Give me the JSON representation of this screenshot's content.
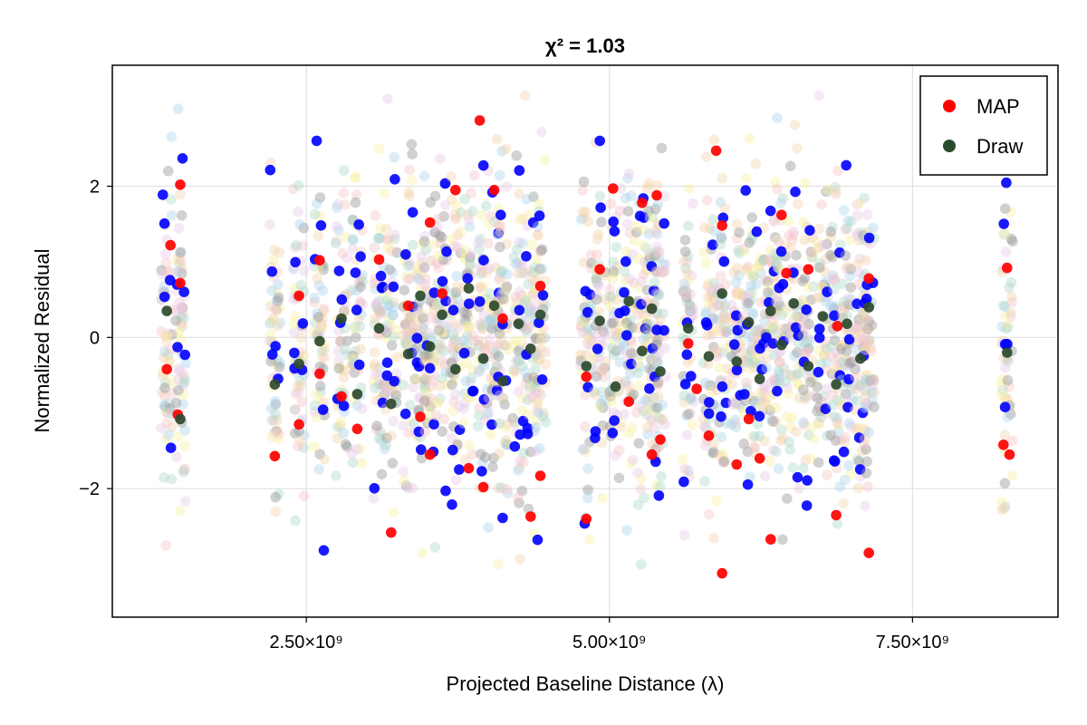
{
  "chart_data": {
    "type": "scatter",
    "title": "χ² = 1.03",
    "xlabel": "Projected Baseline Distance (λ)",
    "ylabel": "Normalized Residual",
    "xlim": [
      900000000,
      8700000000
    ],
    "ylim": [
      -3.7,
      3.6
    ],
    "xticks": [
      2500000000,
      5000000000,
      7500000000
    ],
    "xtick_labels": [
      "2.50×10⁹",
      "5.00×10⁹",
      "7.50×10⁹"
    ],
    "yticks": [
      -2,
      0,
      2
    ],
    "ytick_labels": [
      "−2",
      "0",
      "2"
    ],
    "grid": true,
    "legend": {
      "position": "top-right",
      "entries": [
        {
          "label": "MAP",
          "color": "#ff0000"
        },
        {
          "label": "Draw",
          "color": "#2d4a2d"
        }
      ]
    },
    "baseline_columns": [
      1350000000,
      1460000000,
      2240000000,
      2440000000,
      2610000000,
      2790000000,
      2920000000,
      3100000000,
      3200000000,
      3340000000,
      3440000000,
      3520000000,
      3620000000,
      3730000000,
      3840000000,
      3960000000,
      4050000000,
      4120000000,
      4250000000,
      4350000000,
      4430000000,
      4810000000,
      4920000000,
      5050000000,
      5160000000,
      5270000000,
      5350000000,
      5420000000,
      5650000000,
      5820000000,
      5930000000,
      6050000000,
      6150000000,
      6240000000,
      6330000000,
      6420000000,
      6520000000,
      6640000000,
      6760000000,
      6870000000,
      6960000000,
      7070000000,
      7140000000,
      8280000000
    ],
    "series": [
      {
        "name": "MAP",
        "color": "#ff0000",
        "points": [
          [
            1350000000,
            -0.42
          ],
          [
            1380000000,
            1.22
          ],
          [
            1460000000,
            2.02
          ],
          [
            1460000000,
            0.72
          ],
          [
            1440000000,
            -1.02
          ],
          [
            2240000000,
            -1.57
          ],
          [
            2440000000,
            0.55
          ],
          [
            2440000000,
            -1.15
          ],
          [
            2610000000,
            1.02
          ],
          [
            2610000000,
            -0.48
          ],
          [
            2790000000,
            -0.78
          ],
          [
            2920000000,
            -1.21
          ],
          [
            3100000000,
            1.03
          ],
          [
            3200000000,
            -2.58
          ],
          [
            3340000000,
            0.42
          ],
          [
            3440000000,
            -1.05
          ],
          [
            3520000000,
            1.52
          ],
          [
            3520000000,
            -1.55
          ],
          [
            3620000000,
            0.58
          ],
          [
            3730000000,
            1.95
          ],
          [
            3840000000,
            -1.73
          ],
          [
            3930000000,
            2.87
          ],
          [
            3960000000,
            -1.98
          ],
          [
            4050000000,
            1.95
          ],
          [
            4120000000,
            0.25
          ],
          [
            4350000000,
            -2.37
          ],
          [
            4430000000,
            0.68
          ],
          [
            4430000000,
            -1.83
          ],
          [
            4810000000,
            -2.4
          ],
          [
            4810000000,
            -0.52
          ],
          [
            4920000000,
            0.9
          ],
          [
            5030000000,
            1.97
          ],
          [
            5160000000,
            -0.85
          ],
          [
            5270000000,
            1.78
          ],
          [
            5350000000,
            -1.55
          ],
          [
            5390000000,
            1.88
          ],
          [
            5420000000,
            -1.35
          ],
          [
            5650000000,
            -0.08
          ],
          [
            5720000000,
            -0.68
          ],
          [
            5820000000,
            -1.3
          ],
          [
            5880000000,
            2.47
          ],
          [
            5930000000,
            -3.12
          ],
          [
            5930000000,
            1.48
          ],
          [
            6050000000,
            -1.68
          ],
          [
            6150000000,
            -1.08
          ],
          [
            6240000000,
            -1.6
          ],
          [
            6330000000,
            -2.67
          ],
          [
            6420000000,
            1.62
          ],
          [
            6460000000,
            0.85
          ],
          [
            6640000000,
            0.9
          ],
          [
            6870000000,
            -2.35
          ],
          [
            6880000000,
            0.15
          ],
          [
            7140000000,
            -2.85
          ],
          [
            7140000000,
            0.78
          ],
          [
            8250000000,
            -1.42
          ],
          [
            8280000000,
            0.92
          ],
          [
            8300000000,
            -1.55
          ]
        ]
      },
      {
        "name": "Draw",
        "color": "#2d4a2d",
        "points": [
          [
            1350000000,
            0.35
          ],
          [
            1460000000,
            -1.08
          ],
          [
            2240000000,
            -0.62
          ],
          [
            2440000000,
            -0.35
          ],
          [
            2610000000,
            -0.05
          ],
          [
            2790000000,
            0.25
          ],
          [
            2920000000,
            -0.75
          ],
          [
            3100000000,
            0.12
          ],
          [
            3200000000,
            -0.88
          ],
          [
            3340000000,
            -0.22
          ],
          [
            3440000000,
            0.55
          ],
          [
            3520000000,
            -0.12
          ],
          [
            3620000000,
            0.3
          ],
          [
            3730000000,
            -0.42
          ],
          [
            3840000000,
            0.65
          ],
          [
            3960000000,
            -0.28
          ],
          [
            4050000000,
            0.42
          ],
          [
            4120000000,
            -0.58
          ],
          [
            4250000000,
            0.18
          ],
          [
            4350000000,
            -0.15
          ],
          [
            4430000000,
            0.3
          ],
          [
            4810000000,
            -0.38
          ],
          [
            4920000000,
            0.22
          ],
          [
            5050000000,
            -0.65
          ],
          [
            5160000000,
            0.48
          ],
          [
            5270000000,
            -0.18
          ],
          [
            5350000000,
            0.38
          ],
          [
            5420000000,
            -0.45
          ],
          [
            5650000000,
            0.12
          ],
          [
            5820000000,
            -0.25
          ],
          [
            5930000000,
            0.58
          ],
          [
            6050000000,
            -0.32
          ],
          [
            6150000000,
            0.2
          ],
          [
            6240000000,
            -0.55
          ],
          [
            6330000000,
            0.35
          ],
          [
            6420000000,
            -0.1
          ],
          [
            6520000000,
            0.45
          ],
          [
            6640000000,
            -0.38
          ],
          [
            6760000000,
            0.28
          ],
          [
            6870000000,
            -0.62
          ],
          [
            6960000000,
            0.18
          ],
          [
            7070000000,
            -0.28
          ],
          [
            7140000000,
            0.4
          ],
          [
            8280000000,
            -0.2
          ]
        ]
      }
    ],
    "other_colors": [
      "#0000ff",
      "#9a9a9a",
      "#a9d3ea",
      "#a9d8c8",
      "#f2d3a9",
      "#f5c3c3",
      "#e8c8e8",
      "#f8efa0"
    ]
  }
}
